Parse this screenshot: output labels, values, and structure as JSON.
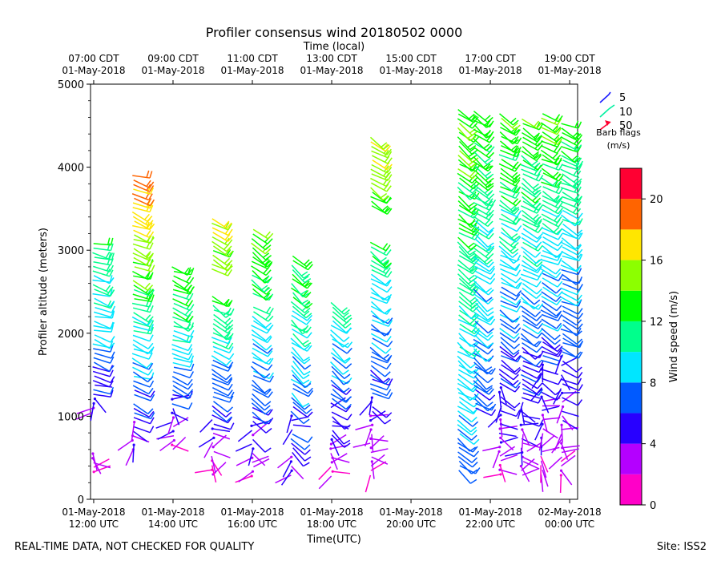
{
  "chart_data": {
    "type": "wind-barb-profile",
    "title": "Profiler consensus wind 20180502 0000",
    "xlabel_top": "Time (local)",
    "xlabel_bottom": "Time(UTC)",
    "ylabel": "Profiler altitude (meters)",
    "ylim": [
      0,
      5000
    ],
    "xlim_hours_utc": [
      11.92,
      24.2
    ],
    "y_ticks": [
      0,
      1000,
      2000,
      3000,
      4000,
      5000
    ],
    "x_ticks_bottom": [
      {
        "hour": 12,
        "line1": "01-May-2018",
        "line2": "12:00 UTC"
      },
      {
        "hour": 14,
        "line1": "01-May-2018",
        "line2": "14:00 UTC"
      },
      {
        "hour": 16,
        "line1": "01-May-2018",
        "line2": "16:00 UTC"
      },
      {
        "hour": 18,
        "line1": "01-May-2018",
        "line2": "18:00 UTC"
      },
      {
        "hour": 20,
        "line1": "01-May-2018",
        "line2": "20:00 UTC"
      },
      {
        "hour": 22,
        "line1": "01-May-2018",
        "line2": "22:00 UTC"
      },
      {
        "hour": 24,
        "line1": "02-May-2018",
        "line2": "00:00 UTC"
      }
    ],
    "x_ticks_top": [
      {
        "hour": 12,
        "line1": "07:00 CDT",
        "line2": "01-May-2018"
      },
      {
        "hour": 14,
        "line1": "09:00 CDT",
        "line2": "01-May-2018"
      },
      {
        "hour": 16,
        "line1": "11:00 CDT",
        "line2": "01-May-2018"
      },
      {
        "hour": 18,
        "line1": "13:00 CDT",
        "line2": "01-May-2018"
      },
      {
        "hour": 20,
        "line1": "15:00 CDT",
        "line2": "01-May-2018"
      },
      {
        "hour": 22,
        "line1": "17:00 CDT",
        "line2": "01-May-2018"
      },
      {
        "hour": 24,
        "line1": "19:00 CDT",
        "line2": "01-May-2018"
      }
    ],
    "barb_legend": {
      "title": "Barb flags",
      "units": "(m/s)",
      "entries": [
        {
          "label": "5",
          "color": "#1a1aff"
        },
        {
          "label": "10",
          "color": "#00f0a0"
        },
        {
          "label": "50",
          "color": "#ff0030"
        }
      ]
    },
    "colorbar": {
      "label": "Wind speed (m/s)",
      "ticks": [
        0,
        4,
        8,
        12,
        16,
        20
      ],
      "range": [
        0,
        22
      ],
      "bins": [
        {
          "from": 0,
          "to": 2,
          "color": "#ff00c8"
        },
        {
          "from": 2,
          "to": 4,
          "color": "#b400ff"
        },
        {
          "from": 4,
          "to": 6,
          "color": "#2800ff"
        },
        {
          "from": 6,
          "to": 8,
          "color": "#005aff"
        },
        {
          "from": 8,
          "to": 10,
          "color": "#00e6ff"
        },
        {
          "from": 10,
          "to": 12,
          "color": "#00ff8c"
        },
        {
          "from": 12,
          "to": 14,
          "color": "#00ff00"
        },
        {
          "from": 14,
          "to": 16,
          "color": "#8cff00"
        },
        {
          "from": 16,
          "to": 18,
          "color": "#ffe600"
        },
        {
          "from": 18,
          "to": 20,
          "color": "#ff6400"
        },
        {
          "from": 20,
          "to": 22,
          "color": "#ff0032"
        }
      ]
    },
    "profiles": [
      {
        "hour": 12.0,
        "alt_min": 330,
        "alt_max": 3100,
        "gap_min": 600,
        "gap_max": 1000,
        "speed_at_bottom": 1.5,
        "speed_at_top": 12.5,
        "lean": -0.5
      },
      {
        "hour": 13.0,
        "alt_min": 600,
        "alt_max": 3950,
        "gap_min": 1150,
        "gap_max": 1250,
        "speed_at_bottom": 3.0,
        "speed_at_top": 19.5,
        "lean": -0.3
      },
      {
        "hour": 14.0,
        "alt_min": 600,
        "alt_max": 2800,
        "gap_min": 880,
        "gap_max": 920,
        "speed_at_bottom": 2.5,
        "speed_at_top": 14.5,
        "lean": -0.3
      },
      {
        "hour": 15.0,
        "alt_min": 300,
        "alt_max": 3400,
        "gap_min": 2450,
        "gap_max": 2750,
        "speed_at_bottom": 2.0,
        "speed_at_top": 16.5,
        "lean": 0.2
      },
      {
        "hour": 16.0,
        "alt_min": 280,
        "alt_max": 3250,
        "gap_min": 2350,
        "gap_max": 2450,
        "speed_at_bottom": 2.5,
        "speed_at_top": 14.5,
        "lean": 0.4
      },
      {
        "hour": 17.0,
        "alt_min": 290,
        "alt_max": 2950,
        "gap_min": 9999,
        "gap_max": 9999,
        "speed_at_bottom": 3.5,
        "speed_at_top": 13.0,
        "lean": 0.7
      },
      {
        "hour": 18.0,
        "alt_min": 280,
        "alt_max": 2400,
        "gap_min": 9999,
        "gap_max": 9999,
        "speed_at_bottom": 2.5,
        "speed_at_top": 10.5,
        "lean": 0.6
      },
      {
        "hour": 19.0,
        "alt_min": 290,
        "alt_max": 4400,
        "gap_min": 3100,
        "gap_max": 3500,
        "speed_at_bottom": 2.0,
        "speed_at_top": 16.5,
        "lean": 0.3
      },
      {
        "hour": 21.2,
        "alt_min": 350,
        "alt_max": 4700,
        "gap_min": 9999,
        "gap_max": 9999,
        "speed_at_bottom": 7.0,
        "speed_at_top": 14.5,
        "lean": 0.5
      },
      {
        "hour": 21.6,
        "alt_min": 1100,
        "alt_max": 4700,
        "gap_min": 9999,
        "gap_max": 9999,
        "speed_at_bottom": 6.0,
        "speed_at_top": 13.5,
        "lean": 0.5
      },
      {
        "hour": 22.25,
        "alt_min": 300,
        "alt_max": 4650,
        "gap_min": 9999,
        "gap_max": 9999,
        "speed_at_bottom": 2.5,
        "speed_at_top": 14.0,
        "lean": 0.3
      },
      {
        "hour": 22.8,
        "alt_min": 290,
        "alt_max": 4600,
        "gap_min": 9999,
        "gap_max": 9999,
        "speed_at_bottom": 2.5,
        "speed_at_top": 14.0,
        "lean": 0.2
      },
      {
        "hour": 23.3,
        "alt_min": 300,
        "alt_max": 4650,
        "gap_min": 9999,
        "gap_max": 9999,
        "speed_at_bottom": 2.0,
        "speed_at_top": 14.0,
        "lean": 0.1
      },
      {
        "hour": 23.8,
        "alt_min": 290,
        "alt_max": 4550,
        "gap_min": 9999,
        "gap_max": 9999,
        "speed_at_bottom": 2.0,
        "speed_at_top": 13.0,
        "lean": 0.0
      }
    ]
  },
  "footer": {
    "left_note": "REAL-TIME DATA, NOT CHECKED FOR QUALITY",
    "site": "Site: ISS2"
  }
}
